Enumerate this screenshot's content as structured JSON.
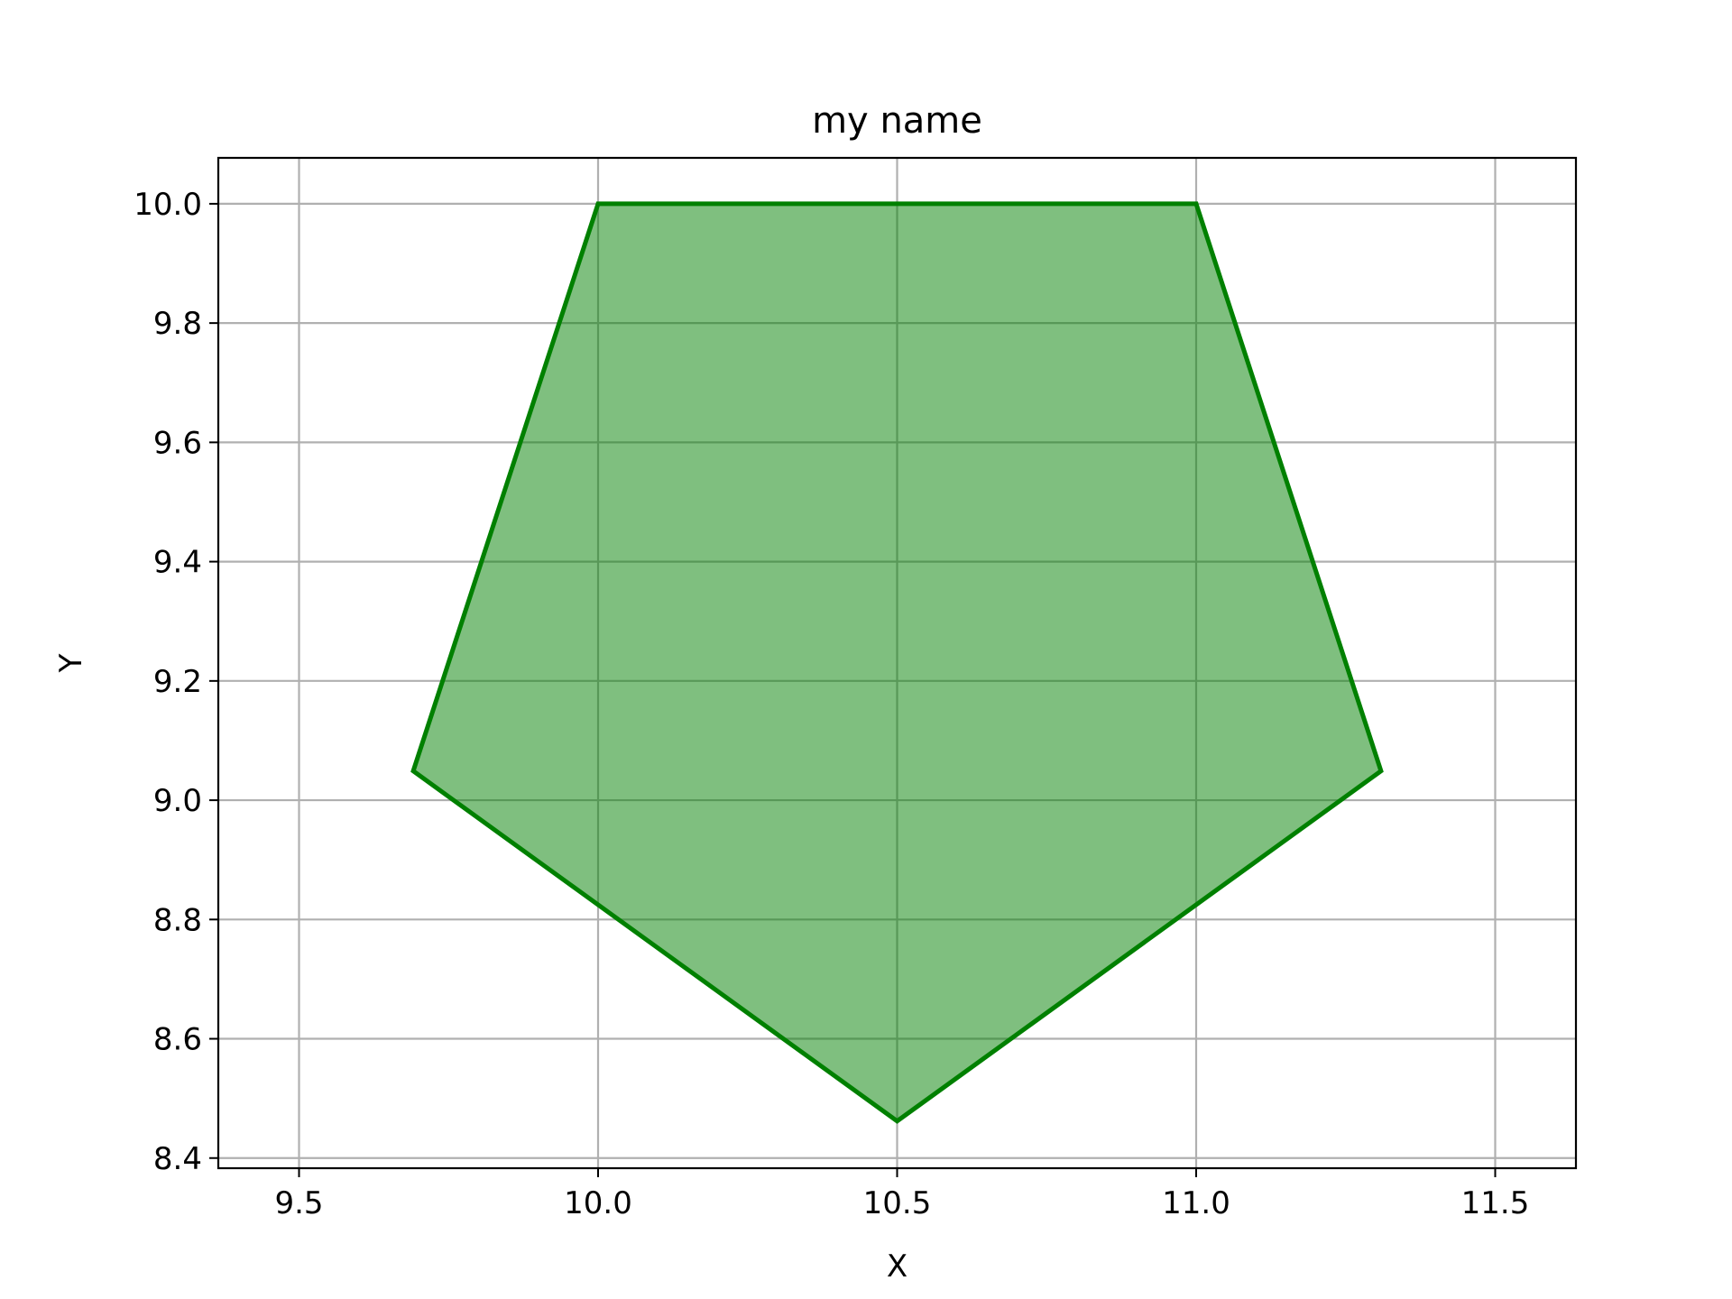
{
  "chart_data": {
    "type": "area",
    "title": "my name",
    "xlabel": "X",
    "ylabel": "Y",
    "xlim": [
      9.365,
      11.635
    ],
    "ylim": [
      8.383,
      10.077
    ],
    "xticks": [
      9.5,
      10.0,
      10.5,
      11.0,
      11.5
    ],
    "xtick_labels": [
      "9.5",
      "10.0",
      "10.5",
      "11.0",
      "11.5"
    ],
    "yticks": [
      8.4,
      8.6,
      8.8,
      9.0,
      9.2,
      9.4,
      9.6,
      9.8,
      10.0
    ],
    "ytick_labels": [
      "8.4",
      "8.6",
      "8.8",
      "9.0",
      "9.2",
      "9.4",
      "9.6",
      "9.8",
      "10.0"
    ],
    "grid": true,
    "series": [
      {
        "shape": "pentagon",
        "x": [
          10.0,
          11.0,
          11.309,
          10.5,
          9.691
        ],
        "y": [
          10.0,
          10.0,
          9.049,
          8.462,
          9.049
        ],
        "edge_color": "#008000",
        "fill_color": "#008000",
        "fill_alpha": 0.5
      }
    ]
  }
}
